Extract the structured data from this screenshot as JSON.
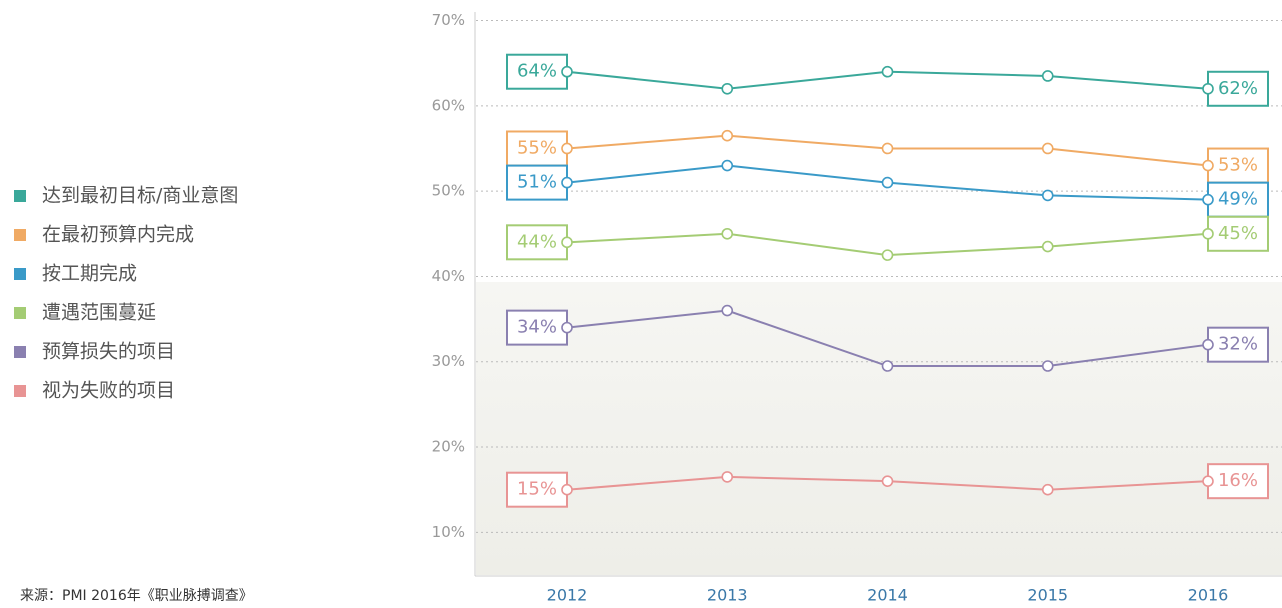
{
  "chart_data": {
    "type": "line",
    "categories": [
      "2012",
      "2013",
      "2014",
      "2015",
      "2016"
    ],
    "series": [
      {
        "name": "达到最初目标/商业意图",
        "color": "#3aa89a",
        "values": [
          64,
          62,
          64,
          63.5,
          62
        ],
        "value_labels": [
          "64%",
          null,
          null,
          null,
          "62%"
        ]
      },
      {
        "name": "在最初预算内完成",
        "color": "#f0aa64",
        "values": [
          55,
          56.5,
          55,
          55,
          53
        ],
        "value_labels": [
          "55%",
          null,
          null,
          null,
          "53%"
        ]
      },
      {
        "name": "按工期完成",
        "color": "#3a9ac8",
        "values": [
          51,
          53,
          51,
          49.5,
          49
        ],
        "value_labels": [
          "51%",
          null,
          null,
          null,
          "49%"
        ]
      },
      {
        "name": "遭遇范围蔓延",
        "color": "#a4cc74",
        "values": [
          44,
          45,
          42.5,
          43.5,
          45
        ],
        "value_labels": [
          "44%",
          null,
          null,
          null,
          "45%"
        ]
      },
      {
        "name": "预算损失的项目",
        "color": "#8a80b0",
        "values": [
          34,
          36,
          29.5,
          29.5,
          32
        ],
        "value_labels": [
          "34%",
          null,
          null,
          null,
          "32%"
        ]
      },
      {
        "name": "视为失败的项目",
        "color": "#e89494",
        "values": [
          15,
          16.5,
          16,
          15,
          16
        ],
        "value_labels": [
          "15%",
          null,
          null,
          null,
          "16%"
        ]
      }
    ],
    "ylim": [
      5,
      71
    ],
    "yticks": [
      {
        "value": 10,
        "label": "10%"
      },
      {
        "value": 20,
        "label": "20%"
      },
      {
        "value": 30,
        "label": "30%"
      },
      {
        "value": 40,
        "label": "40%"
      },
      {
        "value": 50,
        "label": "50%"
      },
      {
        "value": 60,
        "label": "60%"
      },
      {
        "value": 70,
        "label": "70%"
      }
    ],
    "grid": true,
    "legend": "left",
    "source": "来源：PMI 2016年《职业脉搏调查》"
  }
}
